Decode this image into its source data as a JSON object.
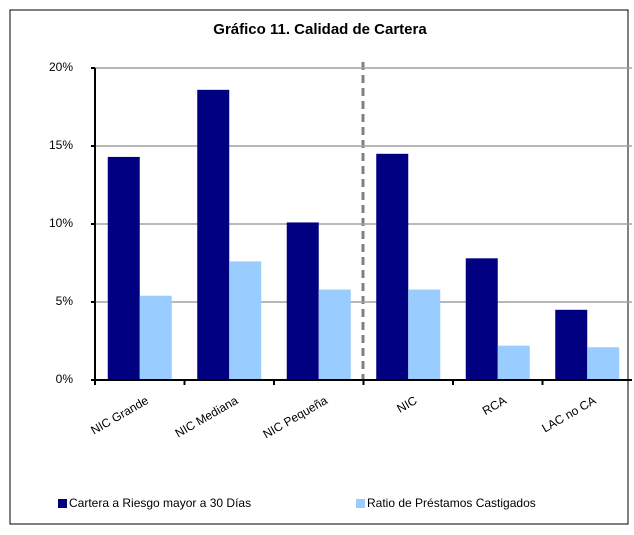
{
  "chart_data": {
    "type": "bar",
    "title": "Gráfico 11. Calidad de Cartera",
    "categories": [
      "NIC Grande",
      "NIC Mediana",
      "NIC Pequeña",
      "NIC",
      "RCA",
      "LAC no CA"
    ],
    "series": [
      {
        "name": "Cartera a Riesgo mayor a 30 Días",
        "color": "#000080",
        "values": [
          14.3,
          18.6,
          10.1,
          14.5,
          7.8,
          4.5
        ]
      },
      {
        "name": "Ratio de Préstamos  Castigados",
        "color": "#99ccff",
        "values": [
          5.4,
          7.6,
          5.8,
          5.8,
          2.2,
          2.1
        ]
      }
    ],
    "ylim": [
      0,
      20
    ],
    "yticks": [
      {
        "value": 0,
        "label": "0%"
      },
      {
        "value": 5,
        "label": "5%"
      },
      {
        "value": 10,
        "label": "10%"
      },
      {
        "value": 15,
        "label": "15%"
      },
      {
        "value": 20,
        "label": "20%"
      }
    ],
    "grid": true,
    "legend": "bottom"
  }
}
